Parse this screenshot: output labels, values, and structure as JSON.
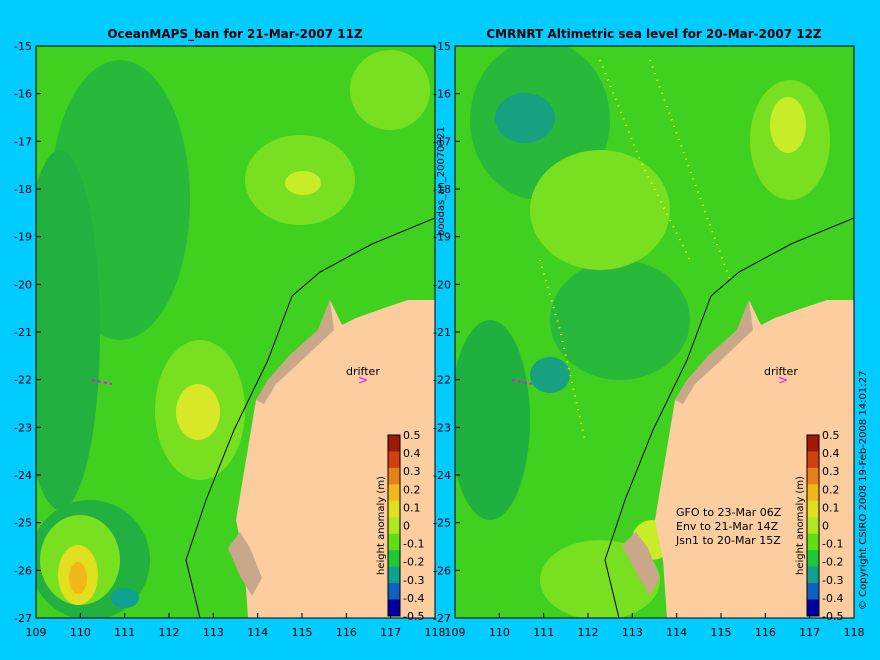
{
  "left_panel": {
    "title": "OceanMAPS_ban for 21-Mar-2007 11Z",
    "drifter_label": "drifter",
    "side_label": "boodas_an_20070321"
  },
  "right_panel": {
    "title": "CMRNRT Altimetric sea level  for 20-Mar-2007 12Z",
    "drifter_label": "drifter",
    "annotations": [
      "GFO to 23-Mar 06Z",
      "Env to 21-Mar 14Z",
      "Jsn1 to 20-Mar 15Z"
    ]
  },
  "axes": {
    "x_ticks": [
      "109",
      "110",
      "111",
      "112",
      "113",
      "114",
      "115",
      "116",
      "117",
      "118"
    ],
    "y_ticks": [
      "-15",
      "-16",
      "-17",
      "-18",
      "-19",
      "-20",
      "-21",
      "-22",
      "-23",
      "-24",
      "-25",
      "-26",
      "-27"
    ]
  },
  "colorbar": {
    "label": "height anomaly (m)",
    "ticks": [
      "0.5",
      "0.4",
      "0.3",
      "0.2",
      "0.1",
      "0",
      "-0.1",
      "-0.2",
      "-0.3",
      "-0.4",
      "-0.5"
    ],
    "colors": [
      "#a01808",
      "#d04010",
      "#e88018",
      "#f0b818",
      "#e0e020",
      "#b0e820",
      "#60e010",
      "#20c838",
      "#10a090",
      "#1060c0",
      "#0000a0"
    ]
  },
  "copyright": "© Copyright CSIRO 2008  19-Feb-2008 14:01:27",
  "colors": {
    "land": "#fbcd9f",
    "shelf": "#c8a888",
    "background": "#00ccff",
    "drifter": "#ff00ff"
  }
}
